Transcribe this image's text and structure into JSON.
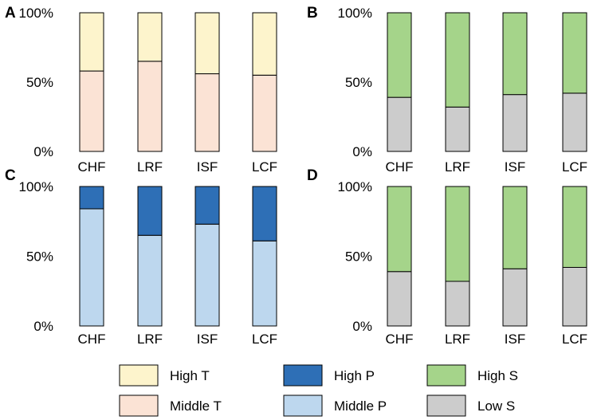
{
  "chart_data": [
    {
      "panel": "A",
      "type": "bar",
      "stacked": true,
      "categories": [
        "CHF",
        "LRF",
        "ISF",
        "LCF"
      ],
      "series": [
        {
          "name": "Middle T",
          "values": [
            58,
            65,
            56,
            55
          ],
          "color": "#fbe3d5"
        },
        {
          "name": "High T",
          "values": [
            42,
            35,
            44,
            45
          ],
          "color": "#fdf4cc"
        }
      ],
      "yticks": [
        "0%",
        "50%",
        "100%"
      ],
      "ylim": [
        0,
        100
      ]
    },
    {
      "panel": "B",
      "type": "bar",
      "stacked": true,
      "categories": [
        "CHF",
        "LRF",
        "ISF",
        "LCF"
      ],
      "series": [
        {
          "name": "Low S",
          "values": [
            39,
            32,
            41,
            42
          ],
          "color": "#cccccc"
        },
        {
          "name": "High S",
          "values": [
            61,
            68,
            59,
            58
          ],
          "color": "#a5d48a"
        }
      ],
      "yticks": [
        "0%",
        "50%",
        "100%"
      ],
      "ylim": [
        0,
        100
      ]
    },
    {
      "panel": "C",
      "type": "bar",
      "stacked": true,
      "categories": [
        "CHF",
        "LRF",
        "ISF",
        "LCF"
      ],
      "series": [
        {
          "name": "Middle P",
          "values": [
            84,
            65,
            73,
            61
          ],
          "color": "#bdd7ee"
        },
        {
          "name": "High P",
          "values": [
            16,
            35,
            27,
            39
          ],
          "color": "#2e6fb6"
        }
      ],
      "yticks": [
        "0%",
        "50%",
        "100%"
      ],
      "ylim": [
        0,
        100
      ]
    },
    {
      "panel": "D",
      "type": "bar",
      "stacked": true,
      "categories": [
        "CHF",
        "LRF",
        "ISF",
        "LCF"
      ],
      "series": [
        {
          "name": "Low S",
          "values": [
            39,
            32,
            41,
            42
          ],
          "color": "#cccccc"
        },
        {
          "name": "High S",
          "values": [
            61,
            68,
            59,
            58
          ],
          "color": "#a5d48a"
        }
      ],
      "yticks": [
        "0%",
        "50%",
        "100%"
      ],
      "ylim": [
        0,
        100
      ]
    }
  ],
  "legend": [
    {
      "label": "High T",
      "color": "#fdf4cc"
    },
    {
      "label": "High P",
      "color": "#2e6fb6"
    },
    {
      "label": "High S",
      "color": "#a5d48a"
    },
    {
      "label": "Middle T",
      "color": "#fbe3d5"
    },
    {
      "label": "Middle P",
      "color": "#bdd7ee"
    },
    {
      "label": "Low S",
      "color": "#cccccc"
    }
  ]
}
